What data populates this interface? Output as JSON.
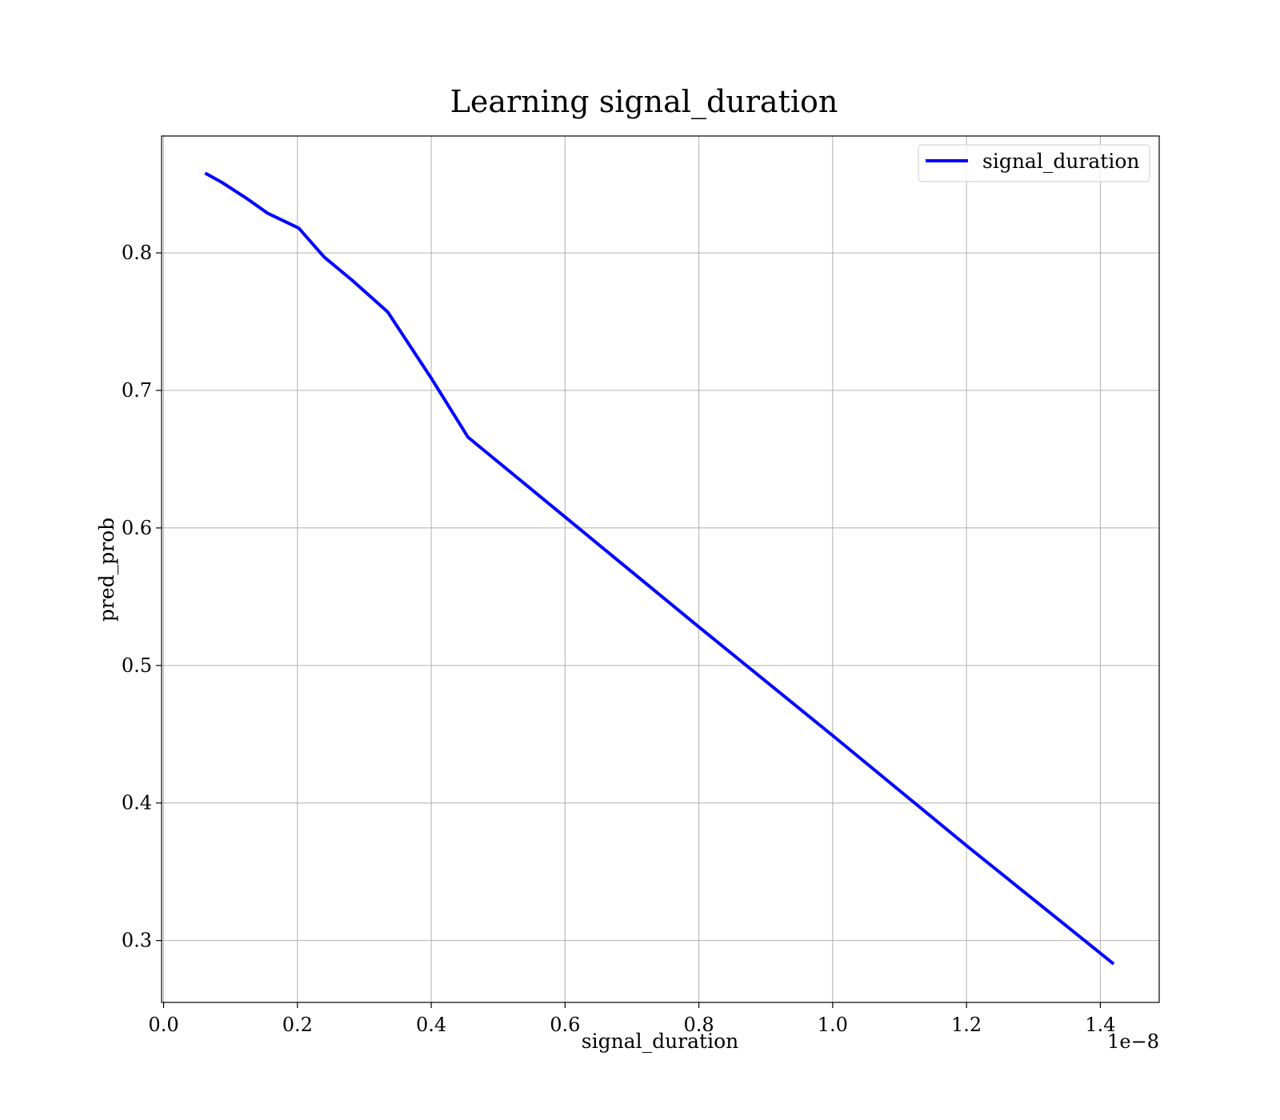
{
  "chart_data": {
    "type": "line",
    "title": "Learning signal_duration",
    "xlabel": "signal_duration",
    "ylabel": "pred_prob",
    "x_offset_label": "1e−8",
    "xlim": [
      -0.003,
      1.488
    ],
    "ylim": [
      0.255,
      0.885
    ],
    "xticks": [
      {
        "value": 0.0,
        "label": "0.0"
      },
      {
        "value": 0.2,
        "label": "0.2"
      },
      {
        "value": 0.4,
        "label": "0.4"
      },
      {
        "value": 0.6,
        "label": "0.6"
      },
      {
        "value": 0.8,
        "label": "0.8"
      },
      {
        "value": 1.0,
        "label": "1.0"
      },
      {
        "value": 1.2,
        "label": "1.2"
      },
      {
        "value": 1.4,
        "label": "1.4"
      }
    ],
    "yticks": [
      {
        "value": 0.3,
        "label": "0.3"
      },
      {
        "value": 0.4,
        "label": "0.4"
      },
      {
        "value": 0.5,
        "label": "0.5"
      },
      {
        "value": 0.6,
        "label": "0.6"
      },
      {
        "value": 0.7,
        "label": "0.7"
      },
      {
        "value": 0.8,
        "label": "0.8"
      }
    ],
    "grid": true,
    "legend_position": "top-right",
    "series": [
      {
        "name": "signal_duration",
        "color": "#0000ff",
        "x": [
          0.062,
          0.088,
          0.126,
          0.155,
          0.202,
          0.24,
          0.282,
          0.335,
          0.4,
          0.455,
          0.6,
          0.8,
          1.0,
          1.2,
          1.42
        ],
        "y": [
          0.858,
          0.851,
          0.839,
          0.829,
          0.818,
          0.797,
          0.78,
          0.757,
          0.709,
          0.666,
          0.608,
          0.528,
          0.449,
          0.369,
          0.283
        ]
      }
    ]
  }
}
